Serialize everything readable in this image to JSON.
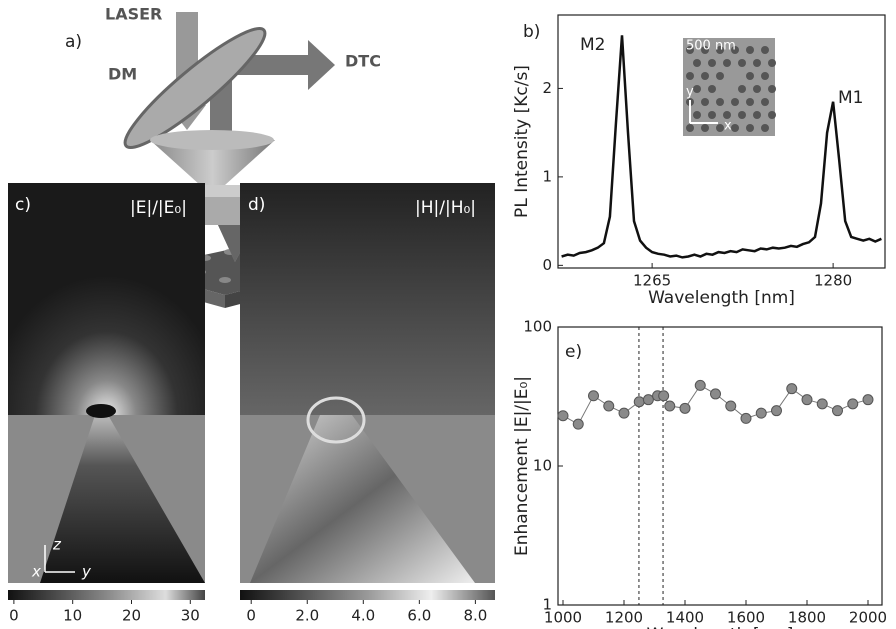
{
  "panels": {
    "a": {
      "label": "a)",
      "laser": "LASER",
      "dm": "DM",
      "dtc": "DTC"
    },
    "c": {
      "label": "c)",
      "title": "|E|/|E₀|",
      "axes": {
        "z": "z",
        "x": "x",
        "y": "y"
      },
      "colorbar": {
        "lim": [
          -1,
          32.5
        ],
        "ticks": [
          0,
          10,
          20,
          30
        ]
      }
    },
    "d": {
      "label": "d)",
      "title": "|H|/|H₀|",
      "colorbar": {
        "lim": [
          -0.4,
          8.7
        ],
        "ticks": [
          0,
          {
            "value": 2,
            "label": "2.0"
          },
          {
            "value": 4,
            "label": "4.0"
          },
          {
            "value": 6,
            "label": "6.0"
          },
          {
            "value": 8,
            "label": "8.0"
          }
        ]
      }
    }
  },
  "chart_data": [
    {
      "type": "line",
      "label": "b)",
      "xlabel": "Wavelength [nm]",
      "ylabel": "PL Intensity [Kc/s]",
      "annotations": [
        "M2",
        "M1"
      ],
      "inset": {
        "scale": "500 nm",
        "y": "y",
        "x": "x"
      },
      "x": [
        1257.5,
        1258,
        1258.5,
        1259,
        1259.5,
        1260,
        1260.5,
        1261,
        1261.5,
        1262,
        1262.5,
        1263,
        1263.5,
        1264,
        1264.5,
        1265,
        1265.5,
        1266,
        1266.5,
        1267,
        1267.5,
        1268,
        1268.5,
        1269,
        1269.5,
        1270,
        1270.5,
        1271,
        1271.5,
        1272,
        1272.5,
        1273,
        1273.5,
        1274,
        1274.5,
        1275,
        1275.5,
        1276,
        1276.5,
        1277,
        1277.5,
        1278,
        1278.5,
        1279,
        1279.5,
        1280,
        1280.5,
        1281,
        1281.5,
        1282,
        1282.5,
        1283,
        1283.5,
        1284
      ],
      "series": [
        {
          "color": "#111111",
          "values": [
            0.1,
            0.12,
            0.11,
            0.14,
            0.15,
            0.17,
            0.2,
            0.25,
            0.55,
            1.6,
            2.6,
            1.5,
            0.5,
            0.28,
            0.2,
            0.15,
            0.13,
            0.12,
            0.1,
            0.11,
            0.09,
            0.1,
            0.12,
            0.1,
            0.13,
            0.12,
            0.15,
            0.14,
            0.16,
            0.15,
            0.18,
            0.17,
            0.16,
            0.19,
            0.18,
            0.2,
            0.19,
            0.2,
            0.22,
            0.21,
            0.24,
            0.26,
            0.32,
            0.7,
            1.5,
            1.85,
            1.2,
            0.5,
            0.32,
            0.3,
            0.28,
            0.3,
            0.27,
            0.3
          ]
        }
      ],
      "xlim": [
        1257.2,
        1284.3
      ],
      "ylim": [
        -0.03,
        2.83
      ],
      "xticks": [
        1265,
        1280
      ],
      "yticks": [
        0,
        1,
        2
      ]
    },
    {
      "type": "scatter",
      "label": "e)",
      "xlabel": "Wavelength [nm]",
      "ylabel": "Enhancement  |E|/|E₀|",
      "log_y": true,
      "color": "#8a8a8a",
      "x": [
        1000,
        1050,
        1100,
        1150,
        1200,
        1250,
        1280,
        1310,
        1330,
        1350,
        1400,
        1450,
        1500,
        1550,
        1600,
        1650,
        1700,
        1750,
        1800,
        1850,
        1900,
        1950,
        2000
      ],
      "values": [
        23,
        20,
        32,
        27,
        24,
        29,
        30,
        32,
        32,
        27,
        26,
        38,
        33,
        27,
        22,
        24,
        25,
        36,
        30,
        28,
        25,
        28,
        30
      ],
      "vlines": [
        1249,
        1328
      ],
      "xlim": [
        983.6,
        2045.9
      ],
      "ylim": [
        1,
        100
      ],
      "xticks": [
        1000,
        1200,
        1400,
        1600,
        1800,
        2000
      ],
      "yticks": [
        1,
        10,
        100
      ]
    }
  ]
}
